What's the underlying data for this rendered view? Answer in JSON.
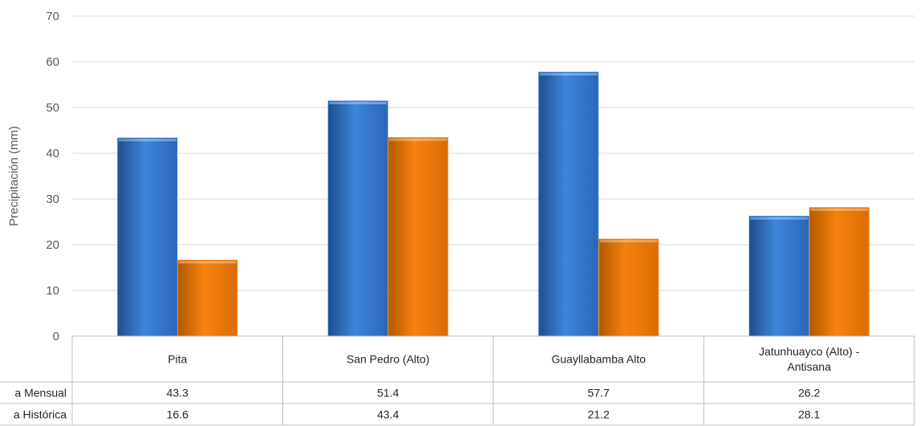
{
  "chart_data": {
    "type": "bar",
    "title": "",
    "xlabel": "",
    "ylabel": "Precipitación (mm)",
    "ylim": [
      0,
      70
    ],
    "yticks": [
      0,
      10,
      20,
      30,
      40,
      50,
      60,
      70
    ],
    "grid": true,
    "categories": [
      {
        "lines": [
          "Pita"
        ]
      },
      {
        "lines": [
          "San Pedro (Alto)"
        ]
      },
      {
        "lines": [
          "Guayllabamba Alto"
        ]
      },
      {
        "lines": [
          "Jatunhuayco (Alto) -",
          "Antisana"
        ]
      }
    ],
    "series": [
      {
        "name": "a Mensual",
        "color": "#2e75d6",
        "values": [
          43.3,
          51.4,
          57.7,
          26.2
        ],
        "labels": [
          "43.3",
          "51.4",
          "57.7",
          "26.2"
        ]
      },
      {
        "name": "a Histórica",
        "color": "#ed7d0e",
        "values": [
          16.6,
          43.4,
          21.2,
          28.1
        ],
        "labels": [
          "16.6",
          "43.4",
          "21.2",
          "28.1"
        ]
      }
    ]
  }
}
